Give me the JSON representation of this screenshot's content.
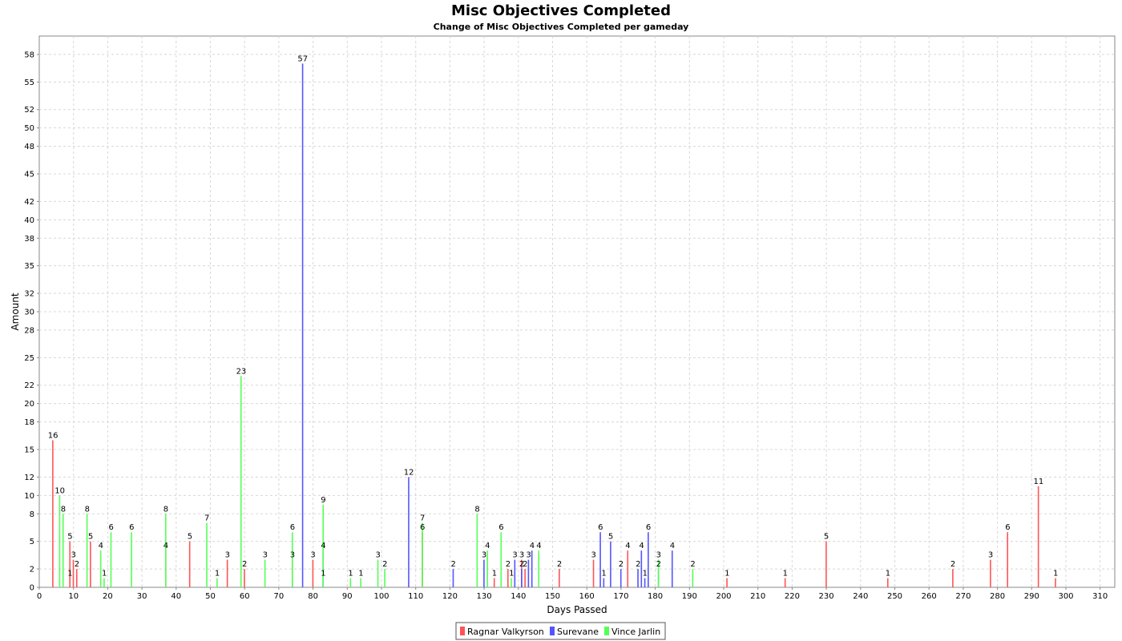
{
  "chart_data": {
    "type": "bar",
    "title": "Misc Objectives Completed",
    "subtitle": "Change of Misc Objectives Completed per gameday",
    "xlabel": "Days Passed",
    "ylabel": "Amount",
    "xlim": [
      0,
      315
    ],
    "ylim": [
      0,
      60
    ],
    "x_ticks": [
      0,
      10,
      20,
      30,
      40,
      50,
      60,
      70,
      80,
      90,
      100,
      110,
      120,
      130,
      140,
      150,
      160,
      170,
      180,
      190,
      200,
      210,
      220,
      230,
      240,
      250,
      260,
      270,
      280,
      290,
      300,
      310
    ],
    "y_ticks": [
      0,
      2,
      5,
      8,
      10,
      12,
      15,
      18,
      20,
      22,
      25,
      28,
      30,
      32,
      35,
      38,
      40,
      42,
      45,
      48,
      50,
      52,
      55,
      58
    ],
    "grid": true,
    "legend_position": "bottom",
    "colors": {
      "Ragnar Valkyrson": "#ff5555",
      "Surevane": "#5555ff",
      "Vince Jarlin": "#55ff55"
    },
    "series": [
      {
        "name": "Ragnar Valkyrson",
        "color": "#ff5555",
        "points": [
          [
            4,
            16
          ],
          [
            9,
            5
          ],
          [
            9,
            1
          ],
          [
            10,
            3
          ],
          [
            11,
            2
          ],
          [
            15,
            5
          ],
          [
            37,
            4
          ],
          [
            44,
            5
          ],
          [
            55,
            3
          ],
          [
            60,
            2
          ],
          [
            74,
            3
          ],
          [
            80,
            3
          ],
          [
            112,
            6
          ],
          [
            133,
            1
          ],
          [
            137,
            2
          ],
          [
            141,
            3
          ],
          [
            142,
            2
          ],
          [
            152,
            2
          ],
          [
            162,
            3
          ],
          [
            172,
            4
          ],
          [
            201,
            1
          ],
          [
            218,
            1
          ],
          [
            230,
            5
          ],
          [
            248,
            1
          ],
          [
            267,
            2
          ],
          [
            278,
            3
          ],
          [
            283,
            6
          ],
          [
            292,
            11
          ],
          [
            297,
            1
          ]
        ]
      },
      {
        "name": "Surevane",
        "color": "#5555ff",
        "points": [
          [
            77,
            57
          ],
          [
            83,
            4
          ],
          [
            83,
            1
          ],
          [
            108,
            12
          ],
          [
            121,
            2
          ],
          [
            130,
            3
          ],
          [
            139,
            3
          ],
          [
            141,
            2
          ],
          [
            143,
            3
          ],
          [
            144,
            4
          ],
          [
            164,
            6
          ],
          [
            165,
            1
          ],
          [
            167,
            5
          ],
          [
            170,
            2
          ],
          [
            175,
            2
          ],
          [
            176,
            4
          ],
          [
            177,
            1
          ],
          [
            178,
            6
          ],
          [
            181,
            2
          ],
          [
            185,
            4
          ]
        ]
      },
      {
        "name": "Vince Jarlin",
        "color": "#55ff55",
        "points": [
          [
            6,
            10
          ],
          [
            7,
            8
          ],
          [
            14,
            8
          ],
          [
            18,
            4
          ],
          [
            19,
            1
          ],
          [
            21,
            6
          ],
          [
            27,
            6
          ],
          [
            37,
            8
          ],
          [
            49,
            7
          ],
          [
            52,
            1
          ],
          [
            59,
            23
          ],
          [
            66,
            3
          ],
          [
            74,
            6
          ],
          [
            83,
            9
          ],
          [
            91,
            1
          ],
          [
            94,
            1
          ],
          [
            99,
            3
          ],
          [
            101,
            2
          ],
          [
            112,
            7
          ],
          [
            128,
            8
          ],
          [
            131,
            4
          ],
          [
            135,
            6
          ],
          [
            138,
            1
          ],
          [
            146,
            4
          ],
          [
            181,
            3
          ],
          [
            191,
            2
          ]
        ]
      }
    ]
  }
}
